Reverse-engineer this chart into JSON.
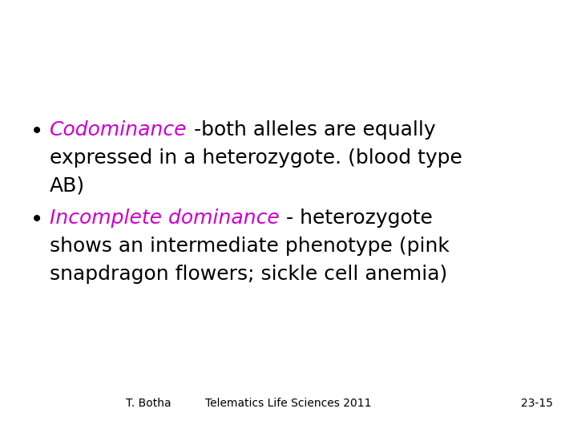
{
  "background_color": "#ffffff",
  "bullet_color": "#000000",
  "italic_color": "#cc00cc",
  "normal_color": "#000000",
  "bullet1_italic": "Codominance",
  "bullet1_rest_line1": " -both alleles are equally",
  "bullet1_line2": "expressed in a heterozygote. (blood type",
  "bullet1_line3": "AB)",
  "bullet2_italic": "Incomplete dominance",
  "bullet2_rest_line1": " - heterozygote",
  "bullet2_line2": "shows an intermediate phenotype (pink",
  "bullet2_line3": "snapdragon flowers; sickle cell anemia)",
  "footer_left": "T. Botha",
  "footer_center": "Telematics Life Sciences 2011",
  "footer_right": "23-15",
  "font_size_main": 18,
  "font_size_footer": 10,
  "figwidth": 7.2,
  "figheight": 5.4,
  "dpi": 100
}
